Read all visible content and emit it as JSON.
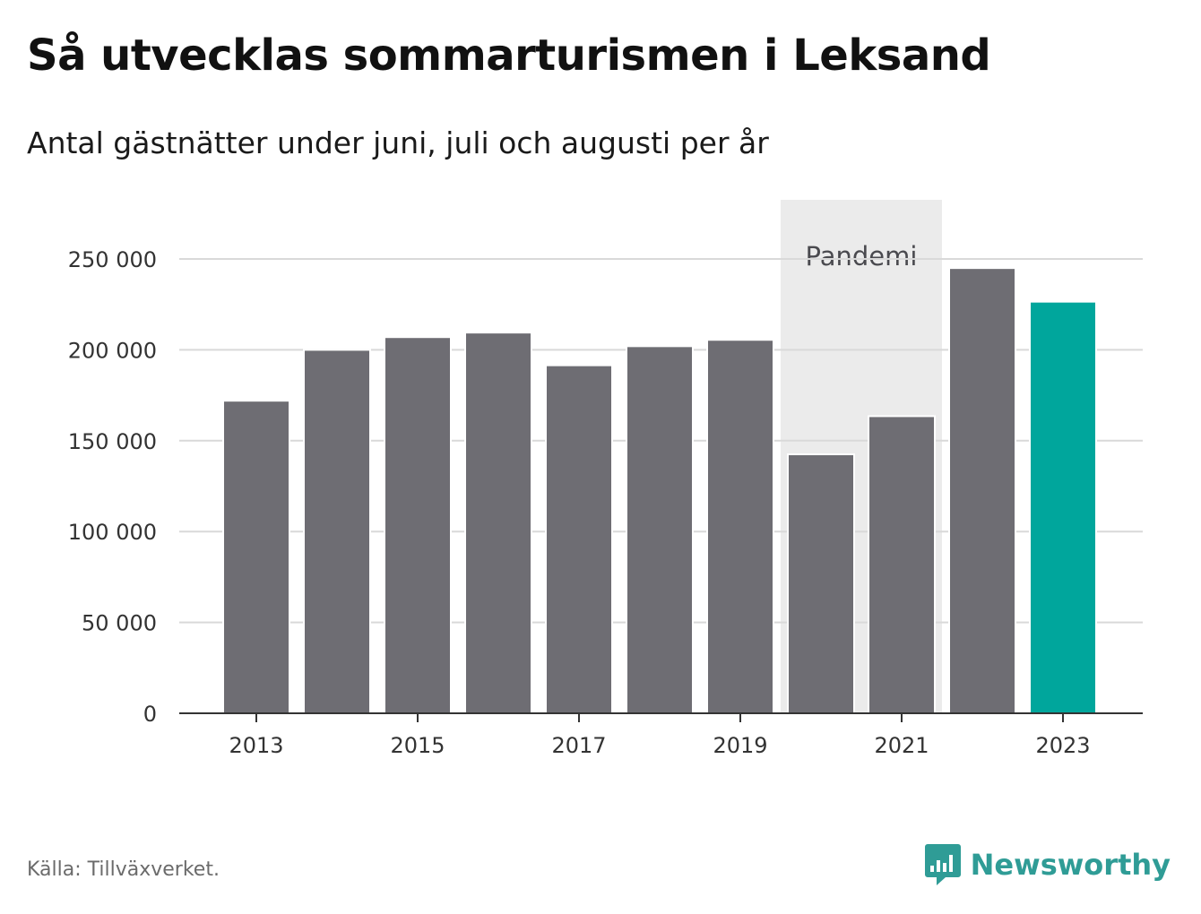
{
  "header": {
    "title": "Så utvecklas sommarturismen i Leksand",
    "subtitle": "Antal gästnätter under juni, juli och augusti per år"
  },
  "footer": {
    "source": "Källa: Tillväxverket.",
    "brand_name": "Newsworthy",
    "brand_icon": "newsworthy-logo-icon"
  },
  "colors": {
    "bar": "#6e6d73",
    "highlight": "#00a69c",
    "band": "#ebebeb",
    "grid": "#d9d9d9",
    "axis": "#333333",
    "brand": "#2f9c96"
  },
  "chart_data": {
    "type": "bar",
    "categories": [
      "2013",
      "2014",
      "2015",
      "2016",
      "2017",
      "2018",
      "2019",
      "2020",
      "2021",
      "2022",
      "2023"
    ],
    "values": [
      172000,
      200000,
      207000,
      209500,
      191500,
      202000,
      205500,
      142500,
      163500,
      245000,
      226500
    ],
    "highlight_category": "2023",
    "title": "Så utvecklas sommarturismen i Leksand",
    "subtitle": "Antal gästnätter under juni, juli och augusti per år",
    "xlabel": "",
    "ylabel": "",
    "ylim": [
      0,
      250000
    ],
    "y_ticks": [
      0,
      50000,
      100000,
      150000,
      200000,
      250000
    ],
    "y_tick_labels": [
      "0",
      "50 000",
      "100 000",
      "150 000",
      "200 000",
      "250 000"
    ],
    "x_tick_labels": [
      "2013",
      "2015",
      "2017",
      "2019",
      "2021",
      "2023"
    ],
    "grid": true,
    "legend": "none",
    "annotations": [
      {
        "label": "Pandemi",
        "from": "2020",
        "to": "2021",
        "kind": "shaded-band"
      }
    ]
  }
}
